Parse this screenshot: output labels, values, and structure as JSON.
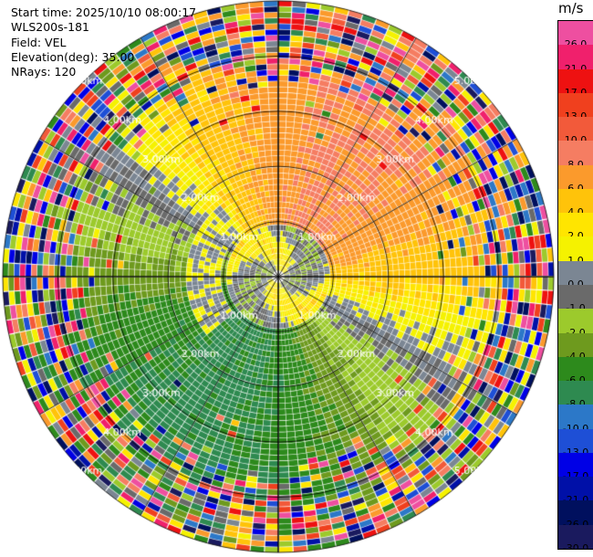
{
  "info": {
    "start_time": "Start time: 2025/10/10 08:00:17",
    "instrument": "WLS200s-181",
    "field": "Field: VEL",
    "elevation": "Elevation(deg): 35.00",
    "nrays": "NRays: 120"
  },
  "colorbar": {
    "unit": "m/s",
    "bins": [
      {
        "label": "26.0",
        "color": "#ee4fa0"
      },
      {
        "label": "21.0",
        "color": "#f0206c"
      },
      {
        "label": "17.0",
        "color": "#ee1111"
      },
      {
        "label": "13.0",
        "color": "#f0401e"
      },
      {
        "label": "10.0",
        "color": "#f25a3a"
      },
      {
        "label": "8.0",
        "color": "#f57d62"
      },
      {
        "label": "6.0",
        "color": "#fb9a2c"
      },
      {
        "label": "4.0",
        "color": "#ffc30a"
      },
      {
        "label": "2.0",
        "color": "#ffe500"
      },
      {
        "label": "1.0",
        "color": "#f5f200"
      },
      {
        "label": "0.0",
        "color": "#7b8693"
      },
      {
        "label": "-1.0",
        "color": "#6a6a6a"
      },
      {
        "label": "-2.0",
        "color": "#9cca2c"
      },
      {
        "label": "-4.0",
        "color": "#6e9a1e"
      },
      {
        "label": "-6.0",
        "color": "#2d8a1c"
      },
      {
        "label": "-8.0",
        "color": "#2e8a50"
      },
      {
        "label": "-10.0",
        "color": "#2c78c8"
      },
      {
        "label": "-13.0",
        "color": "#1e4fd6"
      },
      {
        "label": "-17.0",
        "color": "#0000e6"
      },
      {
        "label": "-21.0",
        "color": "#0010a8"
      },
      {
        "label": "-26.0",
        "color": "#00105e"
      },
      {
        "label": "-30.0",
        "color": "#1a1a5e"
      }
    ]
  },
  "chart_data": {
    "type": "ppi",
    "title": "",
    "field": "VEL",
    "units": "m/s",
    "elevation_deg": 35.0,
    "nrays": 120,
    "range_rings_km": [
      1.0,
      2.0,
      3.0,
      4.0,
      5.0
    ],
    "range_ring_labels": [
      "1.00km",
      "2.00km",
      "3.00km",
      "4.00km",
      "5.00km"
    ],
    "max_range_km": 5.0,
    "spoke_angles_deg": [
      0,
      30,
      60,
      90,
      120,
      150,
      180,
      210,
      240,
      270,
      300,
      330
    ],
    "velocity_pattern": {
      "north": "positive 6 to 10 m/s (salmon/orange)",
      "east": "positive 2 to 6 m/s (yellow/orange)",
      "south": "negative -4 to -10 m/s (green/blue)",
      "west": "negative -1 to -4 m/s (olive/grey)",
      "near_center": "-2 to 2 m/s (light green/grey/yellow swirl)",
      "outer_ring_noise_start_km": 3.3
    }
  }
}
